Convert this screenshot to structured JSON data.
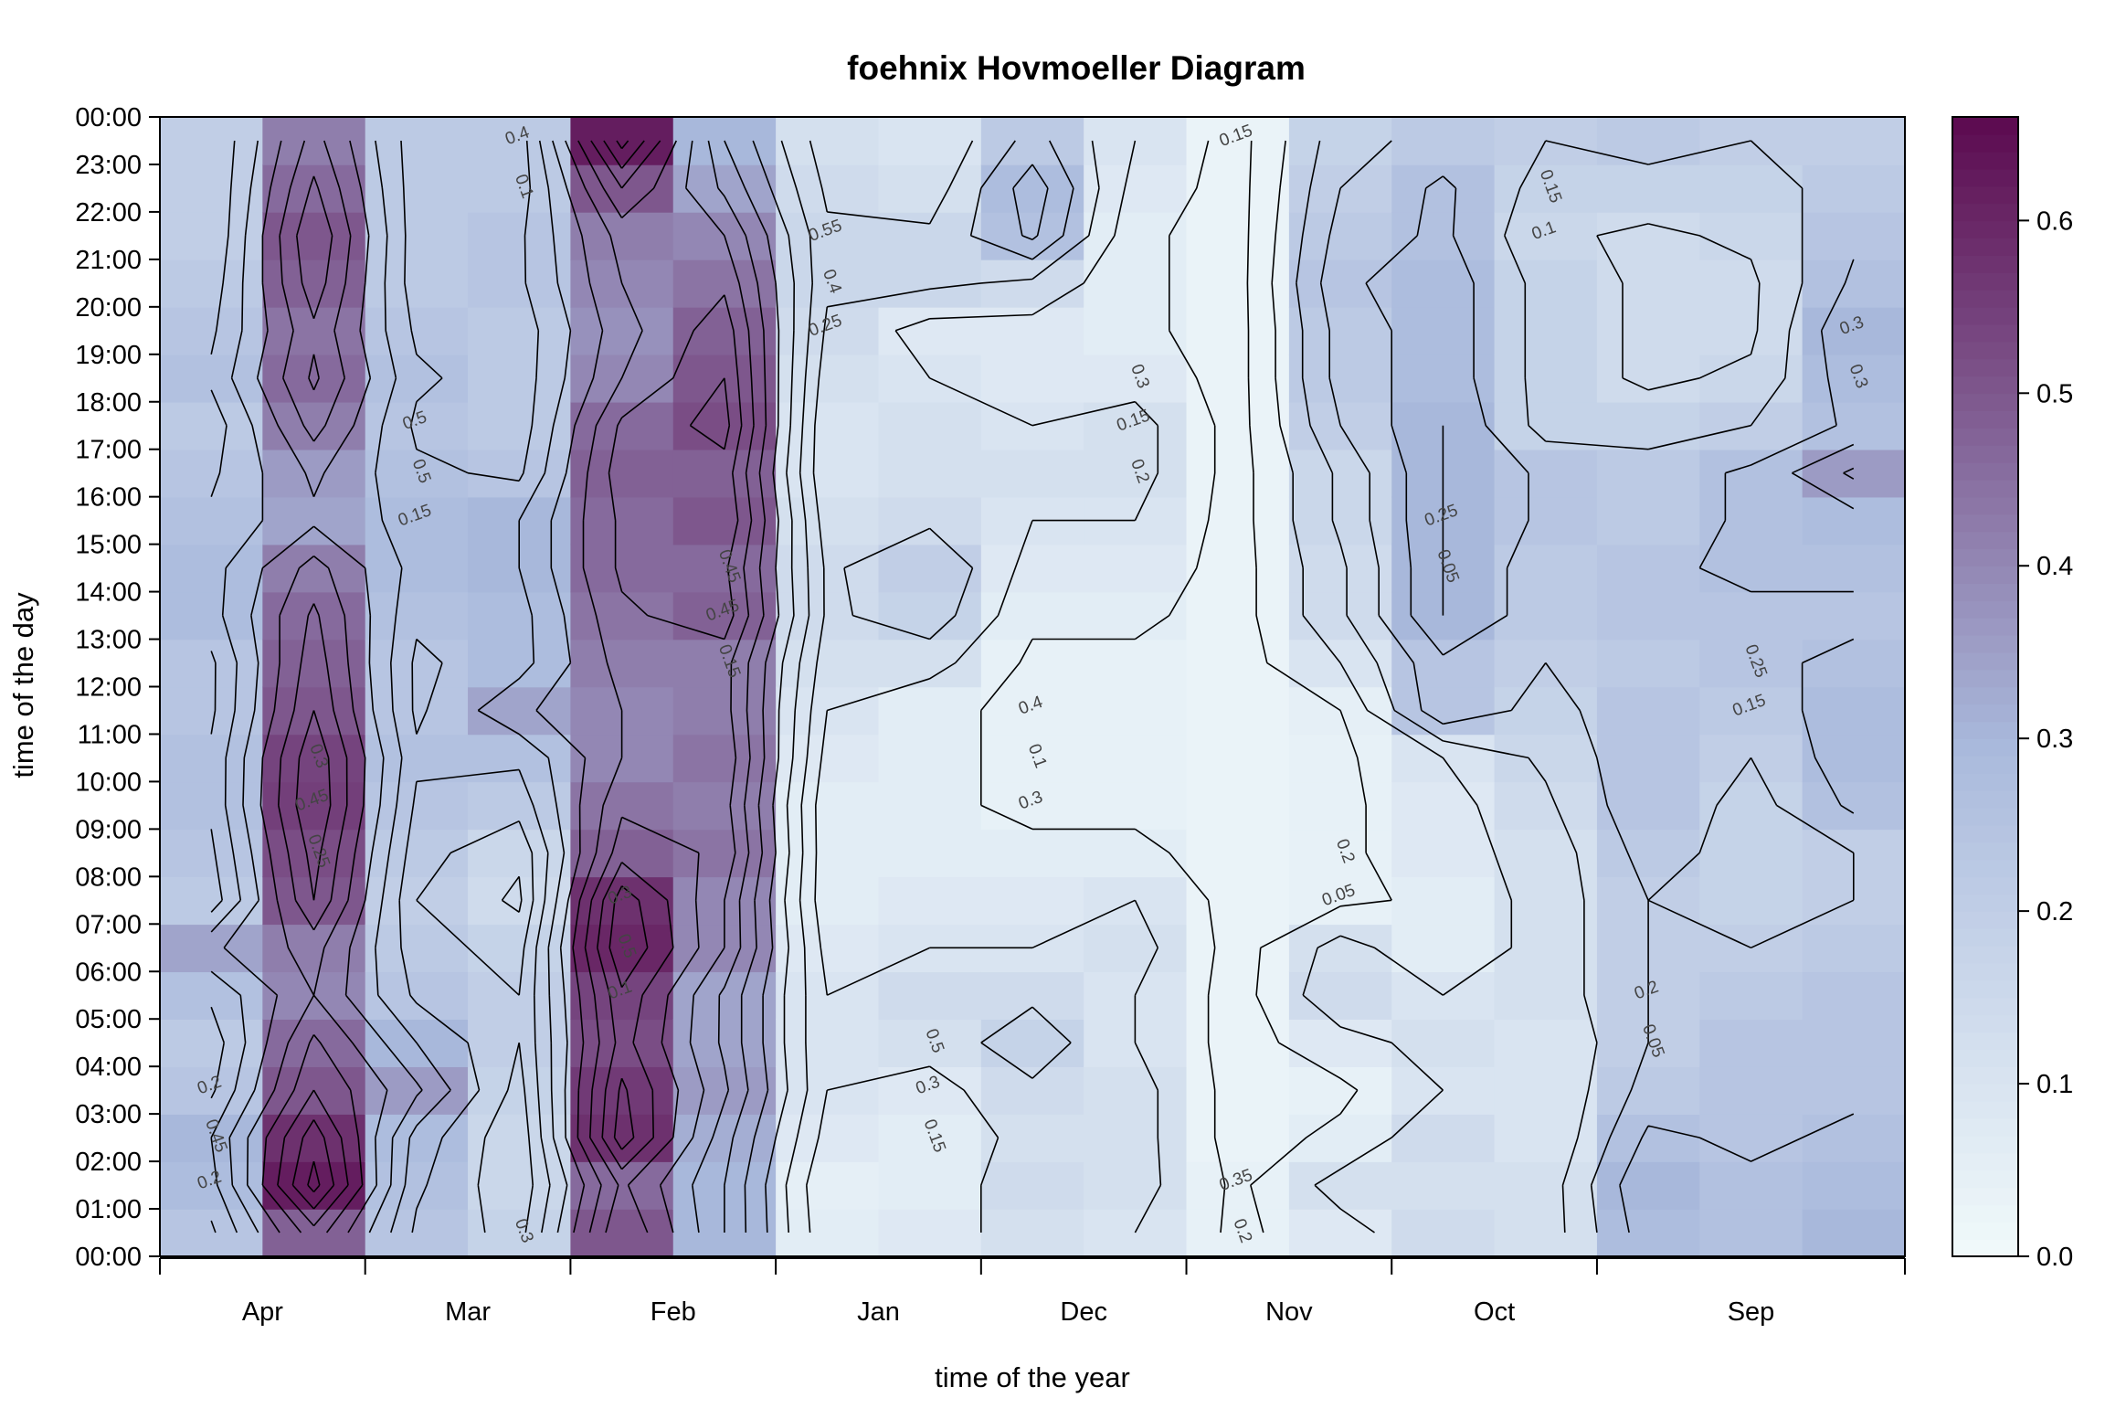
{
  "chart_data": {
    "type": "heatmap",
    "title": "foehnix Hovmoeller Diagram",
    "xlabel": "time of the year",
    "ylabel": "time of the day",
    "x_tick_labels": [
      "Apr",
      "Mar",
      "Feb",
      "Jan",
      "Dec",
      "Nov",
      "Oct",
      "Sep"
    ],
    "y_tick_labels": [
      "00:00",
      "01:00",
      "02:00",
      "03:00",
      "04:00",
      "05:00",
      "06:00",
      "07:00",
      "08:00",
      "09:00",
      "10:00",
      "11:00",
      "12:00",
      "13:00",
      "14:00",
      "15:00",
      "16:00",
      "17:00",
      "18:00",
      "19:00",
      "20:00",
      "21:00",
      "22:00",
      "23:00",
      "00:00"
    ],
    "colorbar": {
      "range": [
        0,
        0.66
      ],
      "ticks": [
        0.0,
        0.1,
        0.2,
        0.3,
        0.4,
        0.5,
        0.6
      ],
      "tick_labels": [
        "0.0",
        "0.1",
        "0.2",
        "0.3",
        "0.4",
        "0.5",
        "0.6"
      ],
      "low_color": "#f1fafb",
      "mid_color": "#a9b9dc",
      "high_color": "#5c0a4f"
    },
    "contour_line_color": "#000000",
    "grid": false,
    "legend": "colorbar-right",
    "columns": [
      {
        "month": "Apr",
        "base": 0.22,
        "profile": [
          0.24,
          0.28,
          0.3,
          0.24,
          0.22,
          0.26,
          0.34,
          0.22,
          0.24,
          0.26,
          0.26,
          0.24,
          0.24,
          0.28,
          0.28,
          0.26,
          0.24,
          0.22,
          0.26,
          0.24,
          0.22,
          0.2,
          0.2,
          0.2
        ]
      },
      {
        "month": "Apr",
        "base": 0.45,
        "profile": [
          0.48,
          0.62,
          0.58,
          0.5,
          0.46,
          0.4,
          0.42,
          0.5,
          0.52,
          0.55,
          0.54,
          0.5,
          0.48,
          0.46,
          0.42,
          0.34,
          0.36,
          0.42,
          0.46,
          0.44,
          0.48,
          0.5,
          0.46,
          0.42
        ]
      },
      {
        "month": "Mar",
        "base": 0.24,
        "profile": [
          0.24,
          0.26,
          0.28,
          0.36,
          0.3,
          0.24,
          0.22,
          0.2,
          0.22,
          0.24,
          0.26,
          0.24,
          0.24,
          0.26,
          0.28,
          0.28,
          0.26,
          0.24,
          0.26,
          0.24,
          0.22,
          0.22,
          0.22,
          0.22
        ]
      },
      {
        "month": "Mar",
        "base": 0.2,
        "profile": [
          0.18,
          0.16,
          0.16,
          0.18,
          0.2,
          0.2,
          0.18,
          0.14,
          0.16,
          0.22,
          0.26,
          0.34,
          0.28,
          0.28,
          0.3,
          0.3,
          0.24,
          0.22,
          0.22,
          0.22,
          0.24,
          0.24,
          0.22,
          0.22
        ]
      },
      {
        "month": "Feb",
        "base": 0.45,
        "profile": [
          0.5,
          0.46,
          0.58,
          0.56,
          0.52,
          0.54,
          0.6,
          0.58,
          0.48,
          0.44,
          0.4,
          0.4,
          0.42,
          0.44,
          0.46,
          0.46,
          0.48,
          0.46,
          0.4,
          0.38,
          0.4,
          0.42,
          0.5,
          0.62
        ]
      },
      {
        "month": "Feb",
        "base": 0.4,
        "profile": [
          0.3,
          0.3,
          0.32,
          0.36,
          0.34,
          0.34,
          0.4,
          0.4,
          0.44,
          0.42,
          0.44,
          0.42,
          0.42,
          0.48,
          0.46,
          0.5,
          0.48,
          0.52,
          0.5,
          0.48,
          0.44,
          0.4,
          0.34,
          0.3
        ]
      },
      {
        "month": "Jan",
        "base": 0.1,
        "profile": [
          0.06,
          0.05,
          0.08,
          0.1,
          0.1,
          0.1,
          0.08,
          0.06,
          0.06,
          0.06,
          0.08,
          0.1,
          0.12,
          0.14,
          0.14,
          0.12,
          0.1,
          0.1,
          0.12,
          0.14,
          0.16,
          0.16,
          0.14,
          0.12
        ]
      },
      {
        "month": "Jan",
        "base": 0.08,
        "profile": [
          0.08,
          0.06,
          0.06,
          0.08,
          0.12,
          0.14,
          0.1,
          0.08,
          0.06,
          0.06,
          0.06,
          0.06,
          0.12,
          0.18,
          0.2,
          0.14,
          0.12,
          0.12,
          0.1,
          0.08,
          0.16,
          0.16,
          0.12,
          0.1
        ]
      },
      {
        "month": "Dec",
        "base": 0.12,
        "profile": [
          0.12,
          0.14,
          0.12,
          0.14,
          0.18,
          0.14,
          0.1,
          0.08,
          0.06,
          0.04,
          0.04,
          0.04,
          0.04,
          0.06,
          0.08,
          0.1,
          0.12,
          0.1,
          0.08,
          0.08,
          0.14,
          0.26,
          0.28,
          0.22
        ]
      },
      {
        "month": "Dec",
        "base": 0.1,
        "profile": [
          0.1,
          0.12,
          0.12,
          0.12,
          0.1,
          0.1,
          0.12,
          0.1,
          0.06,
          0.04,
          0.04,
          0.04,
          0.04,
          0.06,
          0.08,
          0.1,
          0.12,
          0.12,
          0.08,
          0.06,
          0.06,
          0.06,
          0.08,
          0.1
        ]
      },
      {
        "month": "Nov",
        "base": 0.03,
        "profile": [
          0.04,
          0.04,
          0.03,
          0.03,
          0.03,
          0.03,
          0.03,
          0.03,
          0.03,
          0.03,
          0.03,
          0.03,
          0.03,
          0.03,
          0.03,
          0.03,
          0.03,
          0.03,
          0.03,
          0.03,
          0.03,
          0.03,
          0.03,
          0.03
        ]
      },
      {
        "month": "Nov",
        "base": 0.03,
        "profile": [
          0.08,
          0.12,
          0.06,
          0.04,
          0.08,
          0.14,
          0.12,
          0.04,
          0.04,
          0.04,
          0.04,
          0.05,
          0.1,
          0.14,
          0.14,
          0.16,
          0.16,
          0.2,
          0.22,
          0.22,
          0.24,
          0.22,
          0.2,
          0.18
        ]
      },
      {
        "month": "Nov",
        "base": 0.2,
        "profile": [
          0.14,
          0.12,
          0.14,
          0.1,
          0.12,
          0.1,
          0.06,
          0.06,
          0.08,
          0.08,
          0.1,
          0.24,
          0.24,
          0.3,
          0.3,
          0.3,
          0.3,
          0.3,
          0.28,
          0.28,
          0.28,
          0.26,
          0.26,
          0.22
        ]
      },
      {
        "month": "Oct",
        "base": 0.18,
        "profile": [
          0.12,
          0.12,
          0.1,
          0.1,
          0.1,
          0.12,
          0.12,
          0.12,
          0.12,
          0.14,
          0.16,
          0.18,
          0.2,
          0.22,
          0.22,
          0.24,
          0.24,
          0.18,
          0.18,
          0.18,
          0.18,
          0.16,
          0.18,
          0.2
        ]
      },
      {
        "month": "Oct",
        "base": 0.2,
        "profile": [
          0.28,
          0.3,
          0.26,
          0.22,
          0.2,
          0.2,
          0.2,
          0.2,
          0.22,
          0.24,
          0.24,
          0.24,
          0.22,
          0.24,
          0.24,
          0.22,
          0.22,
          0.18,
          0.14,
          0.14,
          0.14,
          0.14,
          0.18,
          0.22
        ]
      },
      {
        "month": "Sep",
        "base": 0.24,
        "profile": [
          0.26,
          0.26,
          0.24,
          0.24,
          0.24,
          0.22,
          0.2,
          0.18,
          0.18,
          0.18,
          0.2,
          0.22,
          0.24,
          0.24,
          0.26,
          0.26,
          0.26,
          0.2,
          0.16,
          0.14,
          0.14,
          0.16,
          0.18,
          0.2
        ]
      },
      {
        "month": "Sep",
        "base": 0.24,
        "profile": [
          0.3,
          0.28,
          0.26,
          0.24,
          0.24,
          0.24,
          0.22,
          0.2,
          0.2,
          0.26,
          0.28,
          0.28,
          0.26,
          0.24,
          0.26,
          0.28,
          0.36,
          0.26,
          0.28,
          0.3,
          0.26,
          0.24,
          0.22,
          0.2
        ]
      }
    ],
    "contour_labels": [
      "0.2",
      "0.3",
      "0.5",
      "0.3",
      "0.3",
      "0.45",
      "0.55",
      "0.5",
      "0.4",
      "0.3",
      "0.35",
      "0.2",
      "0.25",
      "0.15",
      "0.2",
      "0.25",
      "0.3",
      "0.45",
      "0.45",
      "0.5",
      "0.4",
      "0.5",
      "0.45",
      "0.4",
      "0.3",
      "0.1",
      "0.15",
      "0.2",
      "0.05",
      "0.05",
      "0.1",
      "0.05",
      "0.15",
      "0.3",
      "0.2",
      "0.25",
      "0.15",
      "0.1",
      "0.1",
      "0.15",
      "0.25",
      "0.15",
      "0.3",
      "0.2",
      "0.15"
    ]
  }
}
